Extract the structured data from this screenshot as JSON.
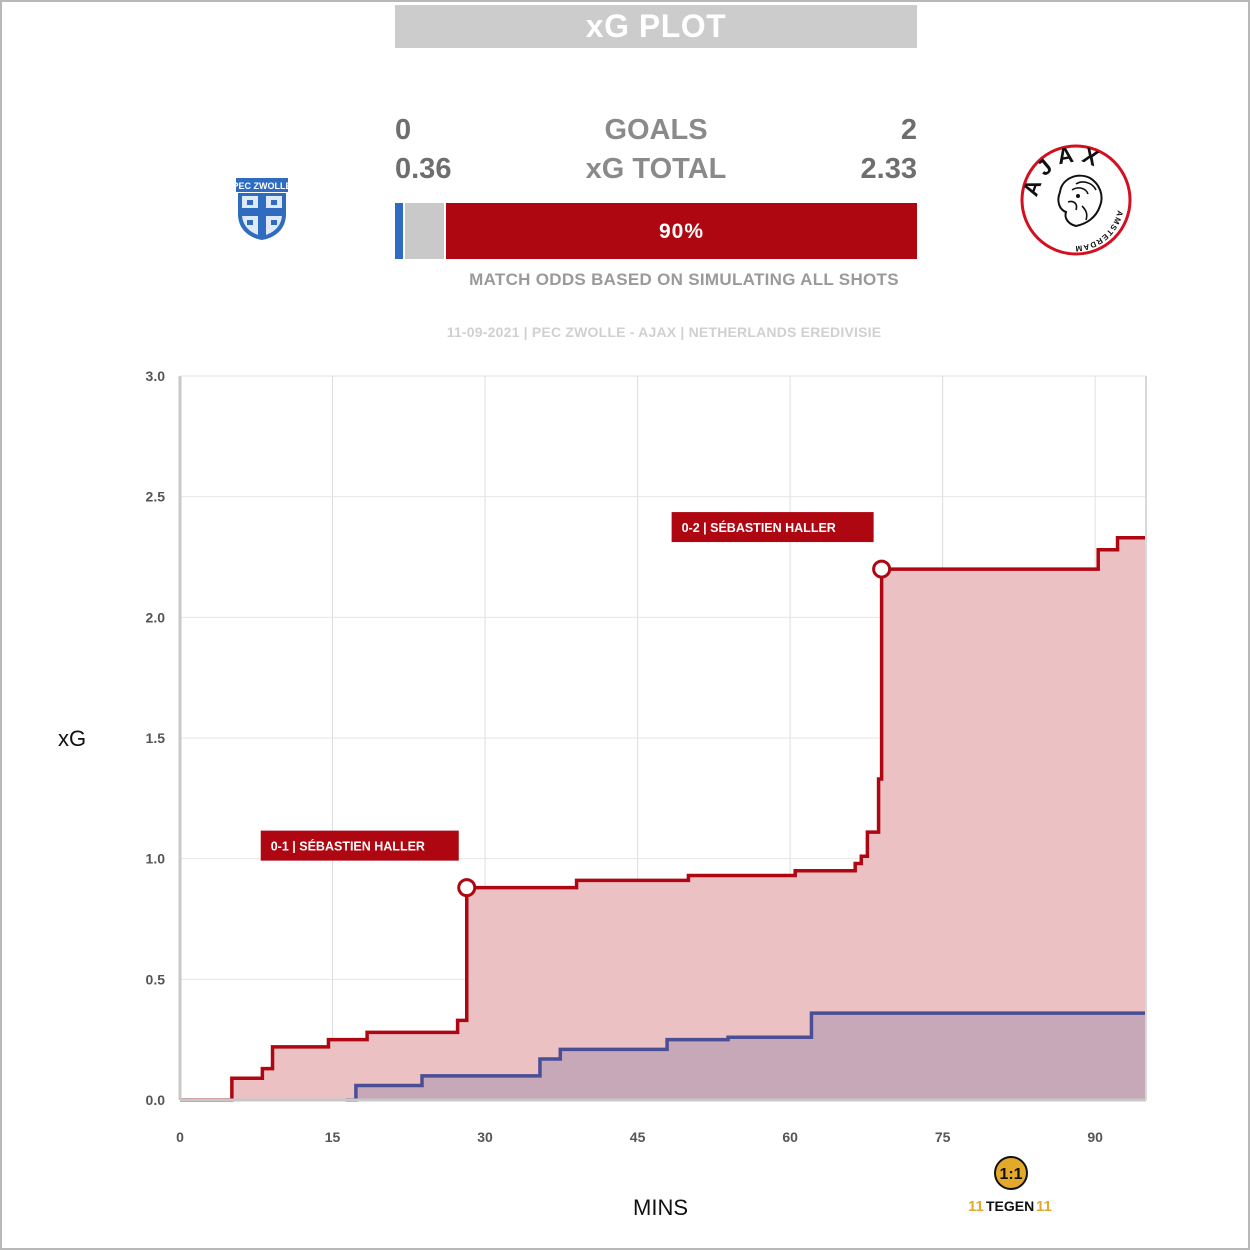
{
  "header": {
    "title": "xG PLOT"
  },
  "score": {
    "goals_label": "GOALS",
    "xg_label": "xG TOTAL",
    "home_goals": "0",
    "away_goals": "2",
    "home_xg": "0.36",
    "away_xg": "2.33"
  },
  "odds": {
    "away_pct_label": "90%",
    "note": "MATCH ODDS BASED ON SIMULATING ALL SHOTS",
    "home_share": 0.015,
    "draw_share": 0.075,
    "away_share": 0.91
  },
  "match_info": "11-09-2021 | PEC ZWOLLE - AJAX | NETHERLANDS EREDIVISIE",
  "crests": {
    "home_text": "PEC ZWOLLE",
    "away_text": "AJAX",
    "away_subtext": "AMSTERDAM"
  },
  "brand": {
    "text": "TEGEN",
    "number": "11"
  },
  "colors": {
    "away": "#ae0711",
    "away_fill": "#ecc1c4",
    "home": "#4a4f95",
    "home_fill": "#bfa3b6",
    "home_bar": "#2f6cc0"
  },
  "chart_data": {
    "type": "line",
    "step": true,
    "xlabel": "MINS",
    "ylabel": "xG",
    "xlim": [
      0,
      95
    ],
    "ylim": [
      0,
      3.0
    ],
    "xticks": [
      0,
      15,
      30,
      45,
      60,
      75,
      90
    ],
    "yticks": [
      0.0,
      0.5,
      1.0,
      1.5,
      2.0,
      2.5,
      3.0
    ],
    "ytick_labels": [
      "0.0",
      "0.5",
      "1.0",
      "1.5",
      "2.0",
      "2.5",
      "3.0"
    ],
    "grid": true,
    "series": [
      {
        "team": "Ajax",
        "x": [
          0,
          5.1,
          8.1,
          9.1,
          14.6,
          18.4,
          27.3,
          28.2,
          39.0,
          50.0,
          60.5,
          66.4,
          67.0,
          67.6,
          68.7,
          69.0,
          90.3,
          92.2,
          95
        ],
        "y": [
          0,
          0.09,
          0.13,
          0.22,
          0.25,
          0.28,
          0.33,
          0.88,
          0.91,
          0.93,
          0.95,
          0.98,
          1.01,
          1.11,
          1.33,
          2.2,
          2.28,
          2.33,
          2.33
        ]
      },
      {
        "team": "PEC Zwolle",
        "x": [
          16.3,
          17.3,
          23.8,
          35.4,
          37.4,
          47.9,
          53.9,
          62.1,
          95
        ],
        "y": [
          0,
          0.06,
          0.1,
          0.17,
          0.21,
          0.25,
          0.26,
          0.36,
          0.36
        ]
      }
    ],
    "annotations": [
      {
        "label": "0-1 | SÉBASTIEN HALLER",
        "x": 28.2,
        "y": 0.88
      },
      {
        "label": "0-2 | SÉBASTIEN HALLER",
        "x": 69.0,
        "y": 2.2
      }
    ]
  }
}
